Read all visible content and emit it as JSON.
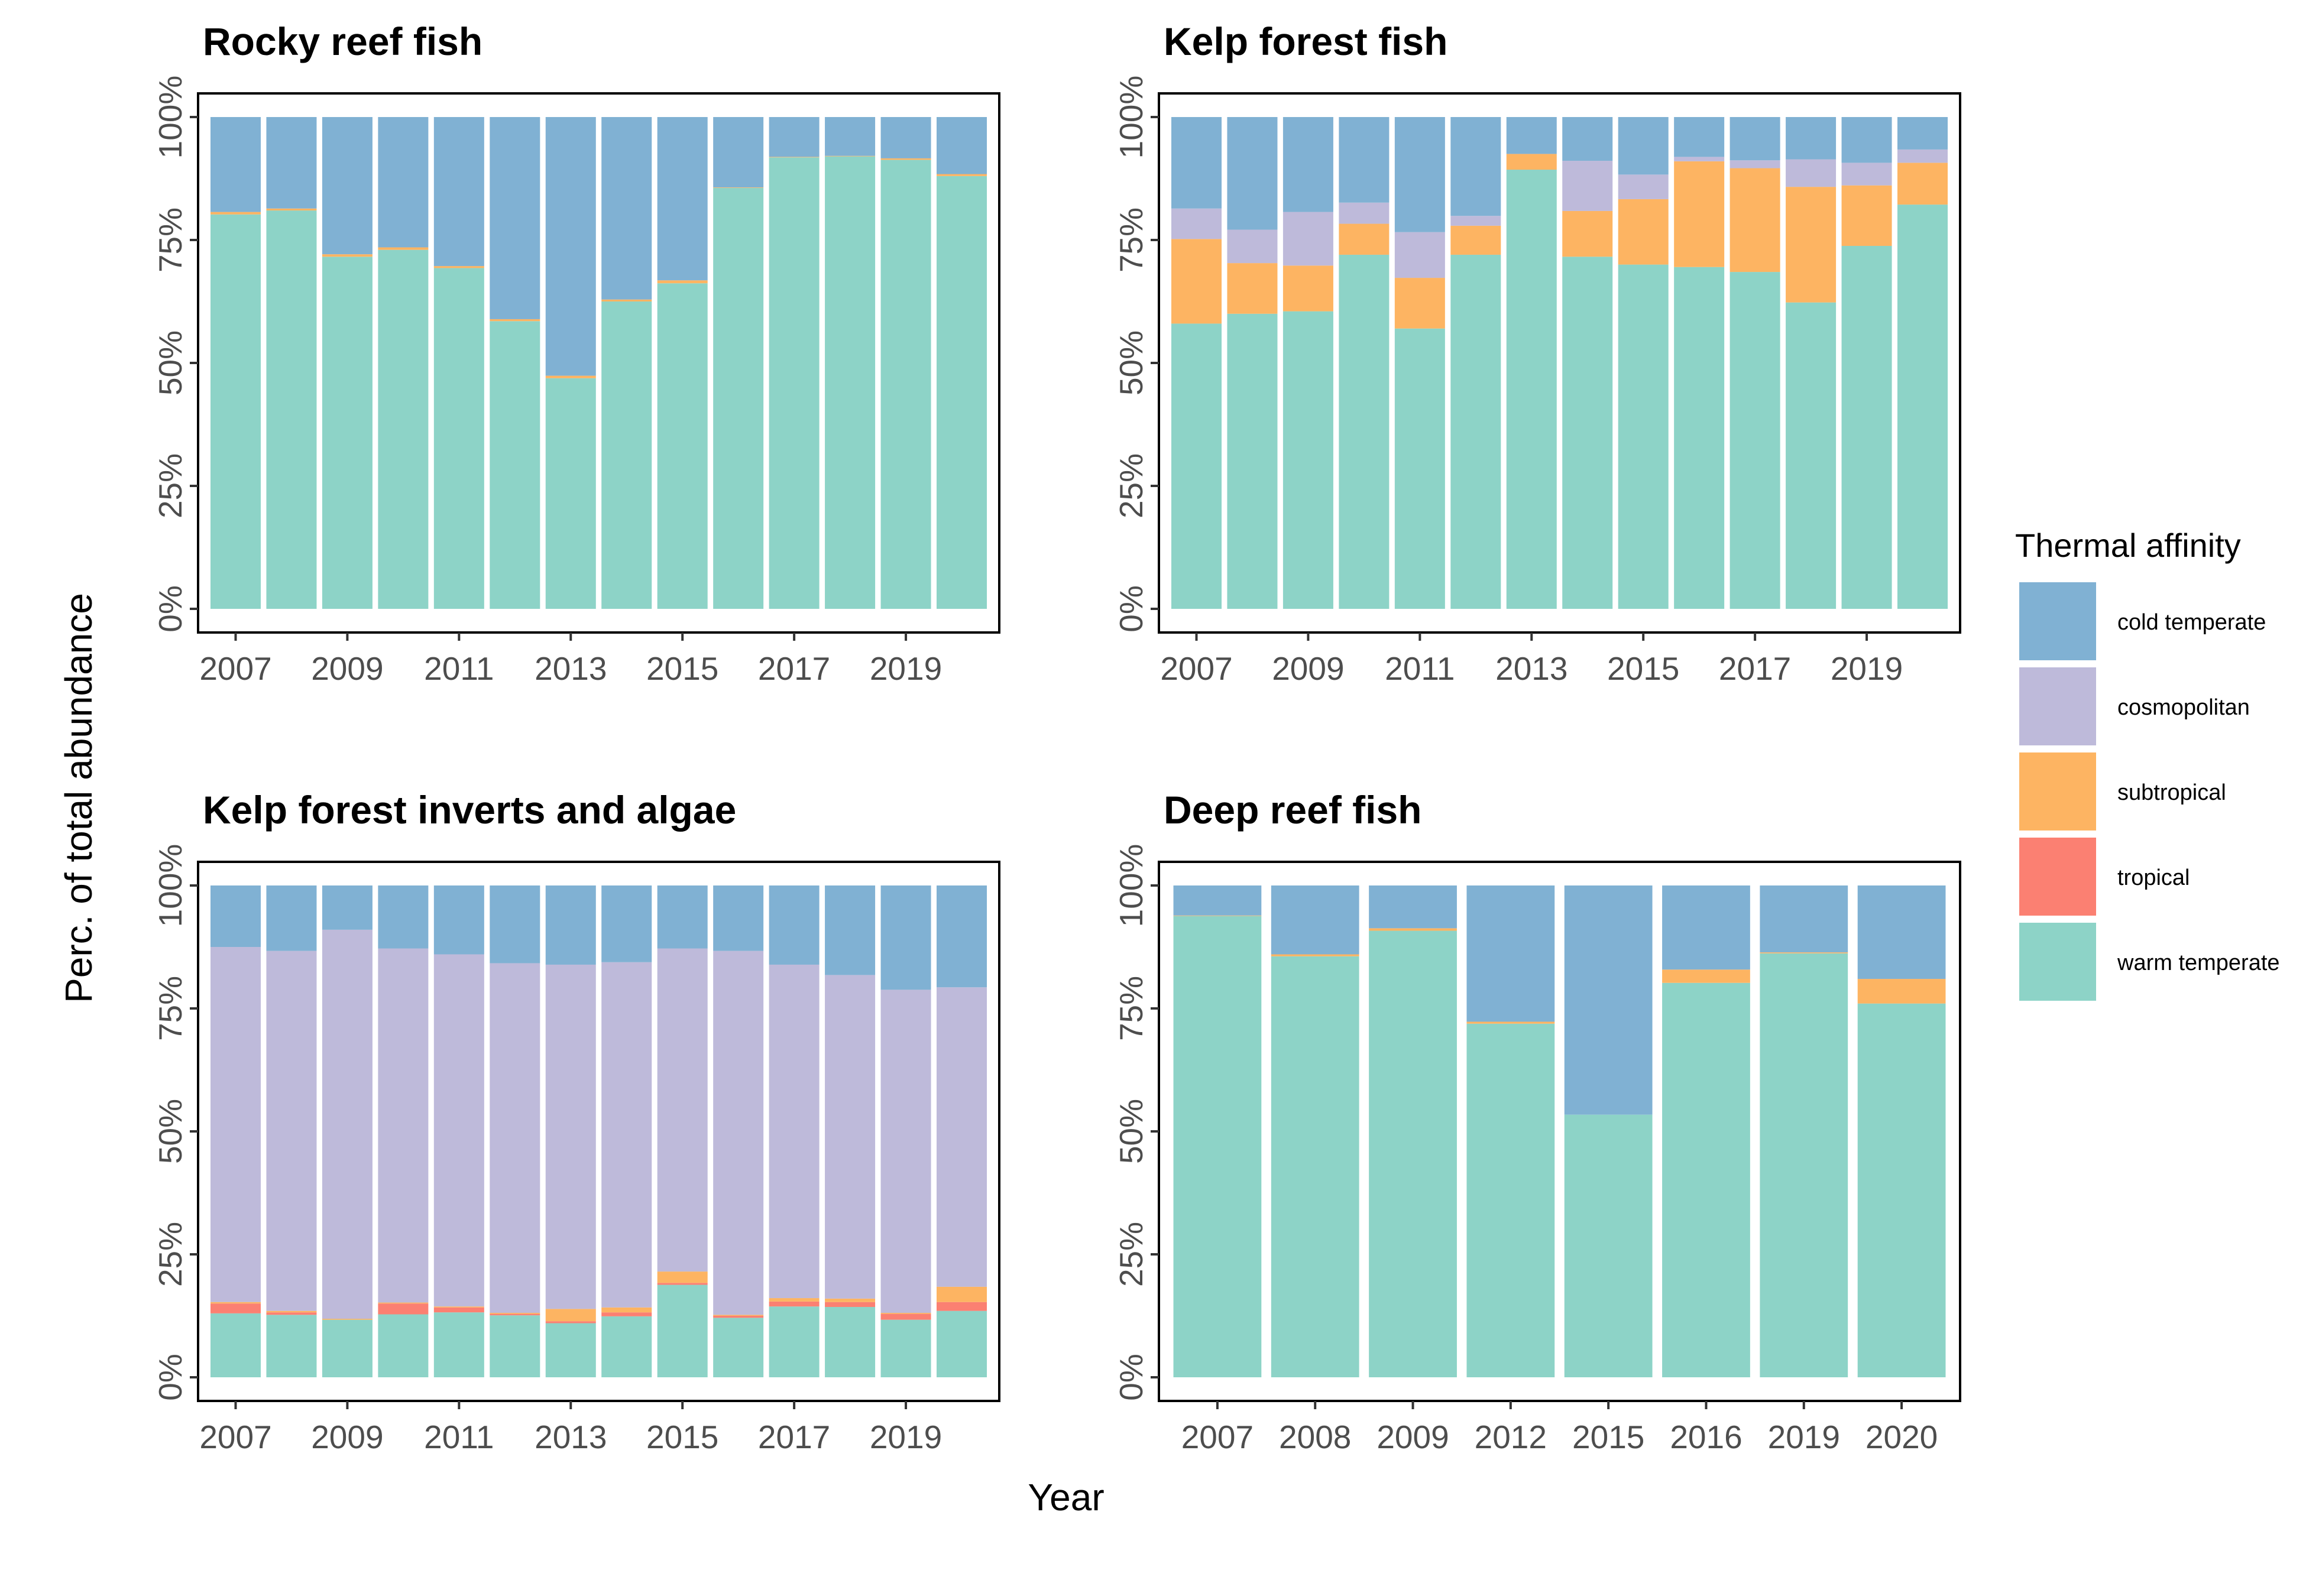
{
  "chart_data": [
    {
      "type": "bar",
      "stacked": true,
      "title": "Rocky reef fish",
      "categories": [
        "2007",
        "2008",
        "2009",
        "2010",
        "2011",
        "2012",
        "2013",
        "2014",
        "2015",
        "2016",
        "2017",
        "2018",
        "2019",
        "2020"
      ],
      "x_tick_labels": [
        "2007",
        "2009",
        "2011",
        "2013",
        "2015",
        "2017",
        "2019"
      ],
      "series": [
        {
          "name": "warm temperate",
          "values": [
            80.2,
            81.0,
            71.6,
            73.0,
            69.3,
            58.5,
            46.9,
            62.5,
            66.2,
            85.6,
            91.8,
            92.0,
            91.3,
            88.0
          ]
        },
        {
          "name": "tropical",
          "values": [
            0,
            0,
            0,
            0,
            0,
            0,
            0,
            0,
            0,
            0,
            0,
            0,
            0,
            0
          ]
        },
        {
          "name": "subtropical",
          "values": [
            0.5,
            0.4,
            0.5,
            0.5,
            0.4,
            0.4,
            0.5,
            0.4,
            0.6,
            0.1,
            0.1,
            0.1,
            0.3,
            0.4
          ]
        },
        {
          "name": "cosmopolitan",
          "values": [
            0,
            0,
            0,
            0,
            0,
            0,
            0,
            0,
            0,
            0,
            0,
            0,
            0,
            0
          ]
        },
        {
          "name": "cold temperate",
          "values": [
            19.3,
            18.6,
            27.9,
            26.5,
            30.3,
            41.1,
            52.6,
            37.1,
            33.2,
            14.3,
            8.1,
            7.9,
            8.4,
            11.6
          ]
        }
      ],
      "ylim": [
        0,
        100
      ],
      "y_tick_labels": [
        "0%",
        "25%",
        "50%",
        "75%",
        "100%"
      ]
    },
    {
      "type": "bar",
      "stacked": true,
      "title": "Kelp forest fish",
      "categories": [
        "2007",
        "2008",
        "2009",
        "2010",
        "2011",
        "2012",
        "2013",
        "2014",
        "2015",
        "2016",
        "2017",
        "2018",
        "2019",
        "2020"
      ],
      "x_tick_labels": [
        "2007",
        "2009",
        "2011",
        "2013",
        "2015",
        "2017",
        "2019"
      ],
      "series": [
        {
          "name": "warm temperate",
          "values": [
            58.0,
            60.0,
            60.5,
            72.0,
            57.0,
            72.0,
            89.3,
            71.6,
            70.0,
            69.5,
            68.5,
            62.3,
            73.8,
            82.2
          ]
        },
        {
          "name": "tropical",
          "values": [
            0,
            0,
            0,
            0,
            0,
            0,
            0,
            0,
            0,
            0,
            0,
            0,
            0,
            0
          ]
        },
        {
          "name": "subtropical",
          "values": [
            17.2,
            10.3,
            9.3,
            6.3,
            10.3,
            5.9,
            3.2,
            9.3,
            13.3,
            21.5,
            21.1,
            23.5,
            12.3,
            8.5
          ]
        },
        {
          "name": "cosmopolitan",
          "values": [
            6.2,
            6.8,
            10.9,
            4.3,
            9.3,
            2.0,
            0,
            10.2,
            5.0,
            0.9,
            1.6,
            5.6,
            4.6,
            2.7
          ]
        },
        {
          "name": "cold temperate",
          "values": [
            18.6,
            22.9,
            19.3,
            17.4,
            23.4,
            20.1,
            7.5,
            8.9,
            11.7,
            8.1,
            8.8,
            8.6,
            9.3,
            6.6
          ]
        }
      ],
      "ylim": [
        0,
        100
      ],
      "y_tick_labels": [
        "0%",
        "25%",
        "50%",
        "75%",
        "100%"
      ]
    },
    {
      "type": "bar",
      "stacked": true,
      "title": "Kelp forest inverts and algae",
      "categories": [
        "2007",
        "2008",
        "2009",
        "2010",
        "2011",
        "2012",
        "2013",
        "2014",
        "2015",
        "2016",
        "2017",
        "2018",
        "2019",
        "2020"
      ],
      "x_tick_labels": [
        "2007",
        "2009",
        "2011",
        "2013",
        "2015",
        "2017",
        "2019"
      ],
      "series": [
        {
          "name": "warm temperate",
          "values": [
            13.0,
            12.7,
            11.7,
            12.8,
            13.2,
            12.6,
            11.0,
            12.4,
            18.8,
            12.1,
            14.4,
            14.3,
            11.7,
            13.5
          ]
        },
        {
          "name": "tropical",
          "values": [
            2.0,
            0.5,
            0,
            2.2,
            1.0,
            0.3,
            0.4,
            0.8,
            0.4,
            0.4,
            1.0,
            1.0,
            1.2,
            1.8
          ]
        },
        {
          "name": "subtropical",
          "values": [
            0.3,
            0.3,
            0.2,
            0.2,
            0.2,
            0.2,
            2.5,
            1.0,
            2.3,
            0.2,
            0.7,
            0.7,
            0.2,
            3.1
          ]
        },
        {
          "name": "cosmopolitan",
          "values": [
            72.2,
            73.2,
            79.1,
            72.0,
            71.6,
            71.1,
            70.0,
            70.2,
            65.7,
            74.0,
            67.8,
            65.8,
            65.7,
            60.9
          ]
        },
        {
          "name": "cold temperate",
          "values": [
            12.5,
            13.3,
            9.0,
            12.8,
            14.0,
            15.8,
            16.1,
            15.6,
            12.8,
            13.3,
            16.1,
            18.2,
            21.2,
            20.7
          ]
        }
      ],
      "ylim": [
        0,
        100
      ],
      "y_tick_labels": [
        "0%",
        "25%",
        "50%",
        "75%",
        "100%"
      ]
    },
    {
      "type": "bar",
      "stacked": true,
      "title": "Deep reef fish",
      "categories": [
        "2007",
        "2008",
        "2009",
        "2012",
        "2015",
        "2016",
        "2019",
        "2020"
      ],
      "x_tick_labels": [
        "2007",
        "2008",
        "2009",
        "2012",
        "2015",
        "2016",
        "2019",
        "2020"
      ],
      "series": [
        {
          "name": "warm temperate",
          "values": [
            93.8,
            85.6,
            90.8,
            71.9,
            53.4,
            80.2,
            86.2,
            76.0
          ]
        },
        {
          "name": "tropical",
          "values": [
            0,
            0,
            0,
            0,
            0,
            0,
            0,
            0
          ]
        },
        {
          "name": "subtropical",
          "values": [
            0.1,
            0.4,
            0.5,
            0.4,
            0,
            2.7,
            0.2,
            5.0
          ]
        },
        {
          "name": "cosmopolitan",
          "values": [
            0,
            0,
            0,
            0,
            0,
            0,
            0,
            0
          ]
        },
        {
          "name": "cold temperate",
          "values": [
            6.1,
            14.0,
            8.7,
            27.7,
            46.6,
            17.1,
            13.6,
            19.0
          ]
        }
      ],
      "ylim": [
        0,
        100
      ],
      "y_tick_labels": [
        "0%",
        "25%",
        "50%",
        "75%",
        "100%"
      ]
    }
  ],
  "axes": {
    "xlabel": "Year",
    "ylabel": "Perc. of total abundance"
  },
  "legend": {
    "title": "Thermal affinity",
    "placement": "right",
    "items": [
      {
        "label": "cold temperate",
        "color": "#80B1D3"
      },
      {
        "label": "cosmopolitan",
        "color": "#BEBADA"
      },
      {
        "label": "subtropical",
        "color": "#FDB462"
      },
      {
        "label": "tropical",
        "color": "#FB8072"
      },
      {
        "label": "warm temperate",
        "color": "#8DD3C7"
      }
    ]
  },
  "colors": {
    "cold temperate": "#80B1D3",
    "cosmopolitan": "#BEBADA",
    "subtropical": "#FDB462",
    "tropical": "#FB8072",
    "warm temperate": "#8DD3C7"
  }
}
